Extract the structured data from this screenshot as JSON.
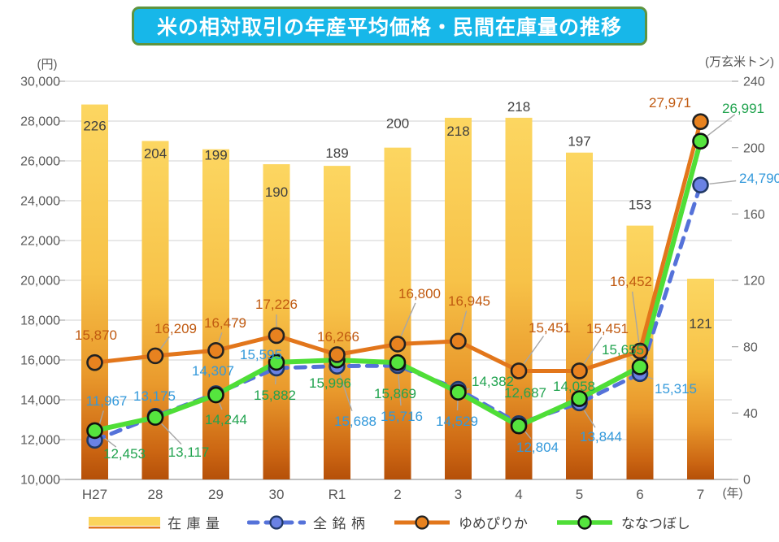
{
  "title": "米の相対取引の年産平均価格・民間在庫量の推移",
  "axes": {
    "left_unit": "(円)",
    "right_unit": "(万玄米トン)",
    "x_unit": "(年)"
  },
  "legend": {
    "inventory_label": "在庫量",
    "all_brands_label": "全銘柄",
    "yumepirika_label": "ゆめぴりか",
    "nanatsuboshi_label": "ななつぼし"
  },
  "chart_data": {
    "type": "combo: bar (right axis) + 3 lines (left axis)",
    "title": "米の相対取引の年産平均価格・民間在庫量の推移",
    "categories": [
      "H27",
      "28",
      "29",
      "30",
      "R1",
      "2",
      "3",
      "4",
      "5",
      "6",
      "7"
    ],
    "x_axis_unit": "年",
    "left_axis": {
      "unit": "円",
      "min": 10000,
      "max": 30000,
      "step": 2000
    },
    "right_axis": {
      "unit": "万玄米トン",
      "min": 0,
      "max": 240,
      "step": 40
    },
    "grid": true,
    "legend_position": "bottom",
    "bar_series": {
      "name": "在庫量",
      "key": "inventory",
      "axis": "right",
      "values": [
        226,
        204,
        199,
        190,
        189,
        200,
        218,
        218,
        197,
        153,
        121
      ]
    },
    "series": [
      {
        "name": "全銘柄",
        "key": "all-brands",
        "axis": "left",
        "style": "dashed",
        "line_color": "#5572d9",
        "marker_fill": "#6a82e4",
        "marker_stroke": "#203864",
        "label_color": "#3399db",
        "values": [
          11967,
          13175,
          14307,
          15595,
          15688,
          15716,
          14529,
          12804,
          13844,
          15315,
          24790
        ]
      },
      {
        "name": "ゆめぴりか",
        "key": "yumepirika",
        "axis": "left",
        "style": "solid",
        "line_color": "#e2761b",
        "marker_fill": "#e8821f",
        "marker_stroke": "#222222",
        "label_color": "#c05a11",
        "values": [
          15870,
          16209,
          16479,
          17226,
          16266,
          16800,
          16945,
          15451,
          15451,
          16452,
          27971
        ]
      },
      {
        "name": "ななつぼし",
        "key": "nanatsuboshi",
        "axis": "left",
        "style": "solid",
        "line_color": "#4fde37",
        "marker_fill": "#55e53e",
        "marker_stroke": "#111111",
        "label_color": "#21a34f",
        "values": [
          12453,
          13117,
          14244,
          15882,
          15996,
          15869,
          14382,
          12687,
          14058,
          15655,
          26991
        ]
      }
    ],
    "colors": {
      "bar_gradient": [
        "#fcd661",
        "#f7c248",
        "#e9992c",
        "#cb6512",
        "#b55009"
      ],
      "bar_underline": "#e0751f",
      "gridline": "#d9d9d9",
      "baseline": "#c0c0c0",
      "axis_text": "#595959",
      "bar_value_text": "#404040",
      "leader_line": "#a6a6a6",
      "title_bg": "#17b7e9",
      "title_border": "#5e9440"
    }
  }
}
